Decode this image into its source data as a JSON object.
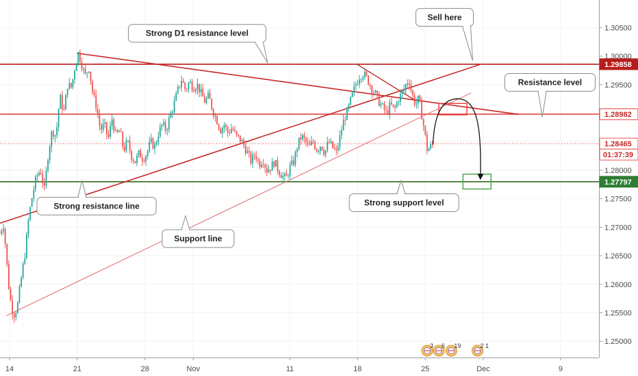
{
  "chart_data": {
    "type": "candlestick",
    "instrument_note": "",
    "ylim": [
      1.2505,
      1.3078
    ],
    "y_ticks": [
      "1.30500",
      "1.30000",
      "1.29500",
      "1.29000",
      "1.28500",
      "1.28000",
      "1.27500",
      "1.27000",
      "1.26500",
      "1.26000",
      "1.25500",
      "1.25000"
    ],
    "x_ticks": [
      {
        "label": "14",
        "day": 0
      },
      {
        "label": "21",
        "day": 7
      },
      {
        "label": "28",
        "day": 14
      },
      {
        "label": "Nov",
        "day": 19
      },
      {
        "label": "11",
        "day": 29
      },
      {
        "label": "18",
        "day": 36
      },
      {
        "label": "25",
        "day": 43
      },
      {
        "label": "Dec",
        "day": 49
      },
      {
        "label": "9",
        "day": 57
      }
    ],
    "x_range_days": [
      -1,
      61
    ],
    "price_path": [
      [
        -1.0,
        1.269
      ],
      [
        -0.6,
        1.2705
      ],
      [
        -0.3,
        1.264
      ],
      [
        0.0,
        1.258
      ],
      [
        0.4,
        1.2545
      ],
      [
        0.8,
        1.256
      ],
      [
        1.2,
        1.261
      ],
      [
        1.6,
        1.2655
      ],
      [
        2.0,
        1.272
      ],
      [
        2.4,
        1.276
      ],
      [
        2.8,
        1.279
      ],
      [
        3.2,
        1.28
      ],
      [
        3.6,
        1.2765
      ],
      [
        4.0,
        1.283
      ],
      [
        4.4,
        1.287
      ],
      [
        4.8,
        1.286
      ],
      [
        5.2,
        1.293
      ],
      [
        5.6,
        1.29
      ],
      [
        6.0,
        1.295
      ],
      [
        6.4,
        1.2945
      ],
      [
        6.8,
        1.2985
      ],
      [
        7.1,
        1.3005
      ],
      [
        7.4,
        1.299
      ],
      [
        7.8,
        1.2965
      ],
      [
        8.2,
        1.298
      ],
      [
        8.6,
        1.2935
      ],
      [
        9.0,
        1.291
      ],
      [
        9.4,
        1.287
      ],
      [
        9.8,
        1.288
      ],
      [
        10.2,
        1.2855
      ],
      [
        10.6,
        1.289
      ],
      [
        11.0,
        1.286
      ],
      [
        11.4,
        1.287
      ],
      [
        11.8,
        1.2835
      ],
      [
        12.2,
        1.285
      ],
      [
        12.6,
        1.2825
      ],
      [
        13.0,
        1.2815
      ],
      [
        13.4,
        1.283
      ],
      [
        13.8,
        1.282
      ],
      [
        14.2,
        1.283
      ],
      [
        14.6,
        1.285
      ],
      [
        15.0,
        1.284
      ],
      [
        15.4,
        1.2865
      ],
      [
        15.8,
        1.288
      ],
      [
        16.2,
        1.287
      ],
      [
        16.6,
        1.2895
      ],
      [
        17.0,
        1.2915
      ],
      [
        17.4,
        1.294
      ],
      [
        17.8,
        1.296
      ],
      [
        18.2,
        1.294
      ],
      [
        18.6,
        1.2955
      ],
      [
        19.0,
        1.2945
      ],
      [
        19.4,
        1.295
      ],
      [
        19.8,
        1.2935
      ],
      [
        20.2,
        1.292
      ],
      [
        20.6,
        1.293
      ],
      [
        21.0,
        1.2905
      ],
      [
        21.4,
        1.289
      ],
      [
        21.8,
        1.287
      ],
      [
        22.2,
        1.288
      ],
      [
        22.6,
        1.2865
      ],
      [
        23.0,
        1.2875
      ],
      [
        23.4,
        1.286
      ],
      [
        23.8,
        1.2855
      ],
      [
        24.2,
        1.2845
      ],
      [
        24.6,
        1.283
      ],
      [
        25.0,
        1.2815
      ],
      [
        25.4,
        1.283
      ],
      [
        25.8,
        1.281
      ],
      [
        26.2,
        1.282
      ],
      [
        26.6,
        1.28
      ],
      [
        27.0,
        1.2805
      ],
      [
        27.4,
        1.2815
      ],
      [
        27.8,
        1.28
      ],
      [
        28.2,
        1.279
      ],
      [
        28.6,
        1.2785
      ],
      [
        29.0,
        1.2805
      ],
      [
        29.4,
        1.2815
      ],
      [
        29.8,
        1.2845
      ],
      [
        30.2,
        1.286
      ],
      [
        30.6,
        1.285
      ],
      [
        31.0,
        1.284
      ],
      [
        31.4,
        1.285
      ],
      [
        31.8,
        1.2835
      ],
      [
        32.2,
        1.2845
      ],
      [
        32.6,
        1.283
      ],
      [
        33.0,
        1.285
      ],
      [
        33.4,
        1.284
      ],
      [
        33.8,
        1.283
      ],
      [
        34.2,
        1.286
      ],
      [
        34.6,
        1.289
      ],
      [
        35.0,
        1.2905
      ],
      [
        35.4,
        1.293
      ],
      [
        35.8,
        1.295
      ],
      [
        36.2,
        1.2965
      ],
      [
        36.6,
        1.297
      ],
      [
        37.0,
        1.296
      ],
      [
        37.4,
        1.2945
      ],
      [
        37.8,
        1.2935
      ],
      [
        38.2,
        1.292
      ],
      [
        38.6,
        1.291
      ],
      [
        39.0,
        1.29
      ],
      [
        39.4,
        1.2915
      ],
      [
        39.8,
        1.2905
      ],
      [
        40.2,
        1.2925
      ],
      [
        40.6,
        1.2935
      ],
      [
        41.0,
        1.295
      ],
      [
        41.3,
        1.296
      ],
      [
        41.6,
        1.2935
      ],
      [
        42.0,
        1.2915
      ],
      [
        42.3,
        1.2925
      ],
      [
        42.6,
        1.29
      ],
      [
        42.9,
        1.287
      ],
      [
        43.2,
        1.2835
      ],
      [
        43.5,
        1.284
      ],
      [
        43.8,
        1.2845
      ]
    ],
    "levels": [
      {
        "name": "strong-d1-resistance",
        "price": 1.29858,
        "color": "#b71c1c",
        "tag": "1.29858",
        "tag_bg": "#b71c1c",
        "tag_fg": "#ffffff"
      },
      {
        "name": "resistance",
        "price": 1.28982,
        "color": "#e53935",
        "tag": "1.28982",
        "tag_bg": "#ffffff",
        "tag_fg": "#c62828"
      },
      {
        "name": "current-price",
        "price": 1.28465,
        "color": "#ef5350",
        "dotted": true,
        "tag": "1.28465",
        "tag_bg": "#ffffff",
        "tag_fg": "#c62828"
      },
      {
        "name": "strong-support",
        "price": 1.27797,
        "color": "#33691e",
        "tag": "1.27797",
        "tag_bg": "#2e7d32",
        "tag_fg": "#ffffff"
      }
    ],
    "countdown": "01:37:39",
    "trendlines": [
      {
        "name": "descending-resistance",
        "from": [
          7.0,
          1.3005
        ],
        "to": [
          52.6,
          1.2898
        ],
        "color": "#c62828",
        "width": 1.6
      },
      {
        "name": "strong-resistance-line",
        "from": [
          -1.0,
          1.2707
        ],
        "to": [
          48.6,
          1.2985
        ],
        "color": "#c62828",
        "width": 1.6
      },
      {
        "name": "support-line",
        "from": [
          -0.3,
          1.2545
        ],
        "to": [
          47.7,
          1.2935
        ],
        "color": "#e57373",
        "width": 1.1
      },
      {
        "name": "local-top-line",
        "from": [
          36.0,
          1.2985
        ],
        "to": [
          42.0,
          1.2922
        ],
        "color": "#c62828",
        "width": 1.4
      }
    ],
    "zones": [
      {
        "name": "sell-zone",
        "x": [
          44.4,
          47.3
        ],
        "y": [
          1.2897,
          1.2917
        ],
        "color": "#e53935"
      },
      {
        "name": "target-zone",
        "x": [
          46.9,
          49.8
        ],
        "y": [
          1.2767,
          1.2793
        ],
        "color": "#43a047"
      }
    ],
    "projection": {
      "from": [
        43.8,
        1.2845
      ],
      "peak": [
        46.5,
        1.2925
      ],
      "to": [
        48.7,
        1.2785
      ]
    },
    "callouts": [
      {
        "label": "Strong D1 resistance level",
        "box": [
          19.4,
          1.304
        ],
        "anchor": [
          26.7,
          1.2988
        ]
      },
      {
        "label": "Sell here",
        "box": [
          45.0,
          1.3068
        ],
        "anchor": [
          47.9,
          1.2992
        ]
      },
      {
        "label": "Resistance level",
        "box": [
          55.9,
          1.2954
        ],
        "anchor": [
          55.1,
          1.2893
        ]
      },
      {
        "label": "Strong resistance line",
        "box": [
          9.0,
          1.2737
        ],
        "anchor": [
          7.5,
          1.2782
        ]
      },
      {
        "label": "Support line",
        "box": [
          19.5,
          1.268
        ],
        "anchor": [
          18.2,
          1.272
        ]
      },
      {
        "label": "Strong support level",
        "box": [
          40.8,
          1.2743
        ],
        "anchor": [
          40.5,
          1.2782
        ]
      }
    ],
    "event_badges": [
      {
        "day": 43.2,
        "count": "3"
      },
      {
        "day": 44.4,
        "count": "6"
      },
      {
        "day": 45.7,
        "count": "19"
      },
      {
        "day": 48.4,
        "count": "2 1"
      }
    ]
  }
}
